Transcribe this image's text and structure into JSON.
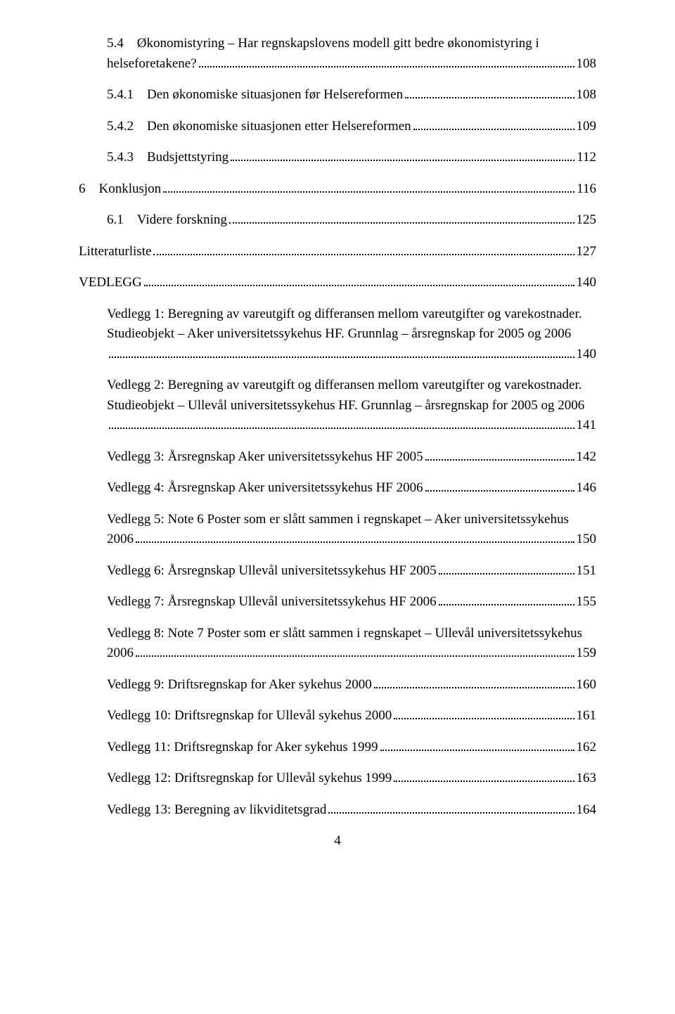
{
  "entries": [
    {
      "indent": 1,
      "wrap": true,
      "line1": "5.4 Økonomistyring – Har regnskapslovens modell gitt bedre økonomistyring i",
      "line2": "helseforetakene?",
      "page": "108"
    },
    {
      "indent": 1,
      "wrap": false,
      "text": "5.4.1 Den økonomiske situasjonen før Helsereformen",
      "page": "108"
    },
    {
      "indent": 1,
      "wrap": false,
      "text": "5.4.2 Den økonomiske situasjonen etter Helsereformen",
      "page": "109"
    },
    {
      "indent": 1,
      "wrap": false,
      "text": "5.4.3 Budsjettstyring",
      "page": "112"
    },
    {
      "indent": 0,
      "wrap": false,
      "text": "6 Konklusjon",
      "page": "116"
    },
    {
      "indent": 1,
      "wrap": false,
      "text": "6.1 Videre forskning",
      "page": "125"
    },
    {
      "indent": 0,
      "wrap": false,
      "text": "Litteraturliste",
      "page": "127"
    },
    {
      "indent": 0,
      "wrap": false,
      "text": "VEDLEGG",
      "page": "140"
    },
    {
      "indent": 1,
      "wrap": true,
      "line1": "Vedlegg 1: Beregning av vareutgift og differansen mellom vareutgifter og varekostnader. Studieobjekt – Aker universitetssykehus HF. Grunnlag – årsregnskap for 2005 og 2006",
      "line2": "",
      "page": "140"
    },
    {
      "indent": 1,
      "wrap": true,
      "line1": "Vedlegg 2: Beregning av vareutgift og differansen mellom vareutgifter og varekostnader. Studieobjekt – Ullevål universitetssykehus HF. Grunnlag – årsregnskap for 2005 og 2006",
      "line2": "",
      "page": "141"
    },
    {
      "indent": 1,
      "wrap": false,
      "text": "Vedlegg 3: Årsregnskap Aker universitetssykehus HF 2005",
      "page": "142"
    },
    {
      "indent": 1,
      "wrap": false,
      "text": "Vedlegg 4: Årsregnskap Aker universitetssykehus HF 2006",
      "page": "146"
    },
    {
      "indent": 1,
      "wrap": true,
      "line1": "Vedlegg 5: Note 6 Poster som er slått sammen i regnskapet – Aker universitetssykehus",
      "line2": "2006",
      "page": "150"
    },
    {
      "indent": 1,
      "wrap": false,
      "text": "Vedlegg 6: Årsregnskap Ullevål universitetssykehus HF 2005",
      "page": "151"
    },
    {
      "indent": 1,
      "wrap": false,
      "text": "Vedlegg 7: Årsregnskap Ullevål universitetssykehus HF 2006",
      "page": "155"
    },
    {
      "indent": 1,
      "wrap": true,
      "line1": "Vedlegg 8: Note 7 Poster som er slått sammen i regnskapet – Ullevål universitetssykehus",
      "line2": "2006",
      "page": "159"
    },
    {
      "indent": 1,
      "wrap": false,
      "text": "Vedlegg 9: Driftsregnskap for Aker sykehus 2000",
      "page": "160"
    },
    {
      "indent": 1,
      "wrap": false,
      "text": "Vedlegg 10: Driftsregnskap for Ullevål sykehus 2000",
      "page": "161"
    },
    {
      "indent": 1,
      "wrap": false,
      "text": "Vedlegg 11: Driftsregnskap for Aker sykehus 1999",
      "page": "162"
    },
    {
      "indent": 1,
      "wrap": false,
      "text": "Vedlegg 12: Driftsregnskap for Ullevål sykehus 1999",
      "page": "163"
    },
    {
      "indent": 1,
      "wrap": false,
      "text": "Vedlegg 13: Beregning av likviditetsgrad",
      "page": "164"
    }
  ],
  "footer": "4",
  "colors": {
    "text": "#000000",
    "background": "#ffffff"
  },
  "typography": {
    "font_family": "Times New Roman",
    "font_size_pt": 12
  }
}
